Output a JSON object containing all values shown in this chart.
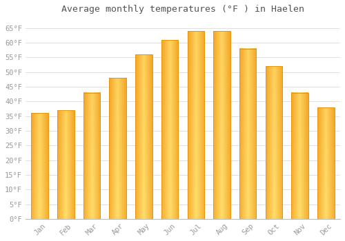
{
  "title": "Average monthly temperatures (°F ) in Haelen",
  "months": [
    "Jan",
    "Feb",
    "Mar",
    "Apr",
    "May",
    "Jun",
    "Jul",
    "Aug",
    "Sep",
    "Oct",
    "Nov",
    "Dec"
  ],
  "values": [
    36,
    37,
    43,
    48,
    56,
    61,
    64,
    64,
    58,
    52,
    43,
    38
  ],
  "bar_color_light": "#FFD966",
  "bar_color_dark": "#F5A623",
  "bar_edge_color": "#E8950A",
  "background_color": "#FFFFFF",
  "grid_color": "#E0E0E0",
  "title_fontsize": 9.5,
  "tick_fontsize": 7.5,
  "tick_color": "#999999",
  "title_color": "#555555",
  "ylim": [
    0,
    68
  ],
  "yticks": [
    0,
    5,
    10,
    15,
    20,
    25,
    30,
    35,
    40,
    45,
    50,
    55,
    60,
    65
  ]
}
